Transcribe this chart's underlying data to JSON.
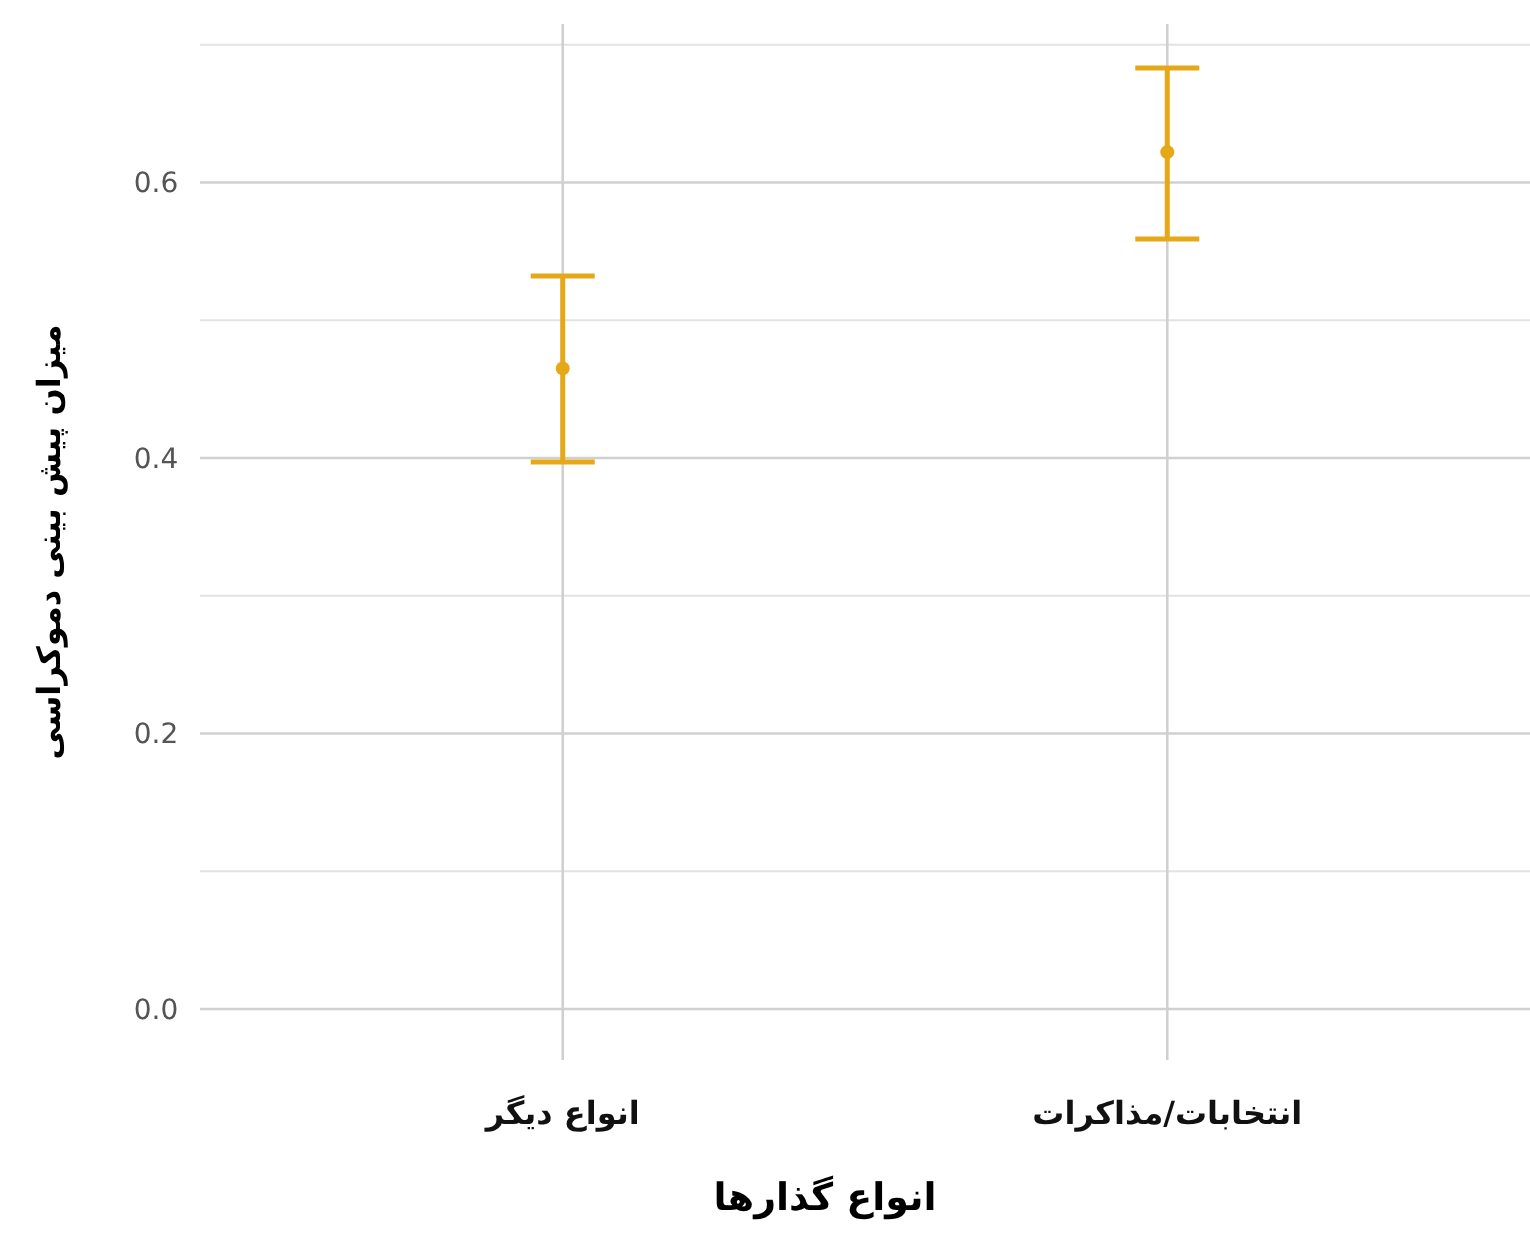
{
  "chart_data": {
    "type": "scatter",
    "xlabel": "انواع گذارها",
    "ylabel": "میزان پیش بینی دموکراسی",
    "categories": [
      "انواع دیگر",
      "انتخابات/مذاکرات"
    ],
    "series": [
      {
        "color": "#e6a817",
        "values": [
          0.465,
          0.622
        ],
        "errors": [
          [
            0.397,
            0.532
          ],
          [
            0.559,
            0.683
          ]
        ]
      }
    ],
    "ylim": [
      -0.037,
      0.715
    ],
    "yticks": [
      {
        "value": 0,
        "label": "0.0"
      },
      {
        "value": 0.2,
        "label": "0.2"
      },
      {
        "value": 0.4,
        "label": "0.4"
      },
      {
        "value": 0.6,
        "label": "0.6"
      }
    ],
    "grid": true,
    "marker": "circle"
  }
}
